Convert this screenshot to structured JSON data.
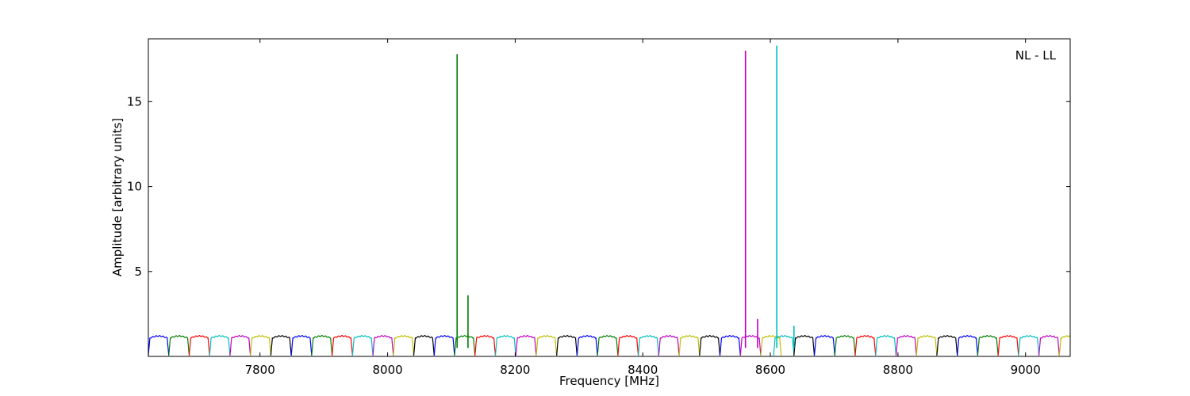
{
  "chart_data": {
    "type": "line",
    "title": "",
    "xlabel": "Frequency [MHz]",
    "ylabel": "Amplitude [arbitrary units]",
    "annotation": "NL - LL",
    "xlim": [
      7625,
      9070
    ],
    "ylim": [
      0,
      18.7
    ],
    "xticks": [
      7800,
      8000,
      8200,
      8400,
      8600,
      8800,
      9000
    ],
    "yticks": [
      5,
      10,
      15
    ],
    "grid": false,
    "legend": "none",
    "subband_width_mhz": 32,
    "subbands": [
      {
        "start": 7625,
        "color": "#0000ff"
      },
      {
        "start": 7657,
        "color": "#008000"
      },
      {
        "start": 7689,
        "color": "#ff0000"
      },
      {
        "start": 7721,
        "color": "#00bfbf"
      },
      {
        "start": 7753,
        "color": "#bf00bf"
      },
      {
        "start": 7785,
        "color": "#bfbf00"
      },
      {
        "start": 7817,
        "color": "#000000"
      },
      {
        "start": 7849,
        "color": "#0000ff"
      },
      {
        "start": 7881,
        "color": "#008000"
      },
      {
        "start": 7913,
        "color": "#ff0000"
      },
      {
        "start": 7945,
        "color": "#00bfbf"
      },
      {
        "start": 7977,
        "color": "#bf00bf"
      },
      {
        "start": 8009,
        "color": "#bfbf00"
      },
      {
        "start": 8041,
        "color": "#000000"
      },
      {
        "start": 8073,
        "color": "#0000ff"
      },
      {
        "start": 8105,
        "color": "#008000"
      },
      {
        "start": 8137,
        "color": "#ff0000"
      },
      {
        "start": 8169,
        "color": "#00bfbf"
      },
      {
        "start": 8201,
        "color": "#bf00bf"
      },
      {
        "start": 8233,
        "color": "#bfbf00"
      },
      {
        "start": 8265,
        "color": "#000000"
      },
      {
        "start": 8297,
        "color": "#0000ff"
      },
      {
        "start": 8329,
        "color": "#008000"
      },
      {
        "start": 8361,
        "color": "#ff0000"
      },
      {
        "start": 8393,
        "color": "#00bfbf"
      },
      {
        "start": 8425,
        "color": "#bf00bf"
      },
      {
        "start": 8457,
        "color": "#bfbf00"
      },
      {
        "start": 8489,
        "color": "#000000"
      },
      {
        "start": 8521,
        "color": "#0000ff"
      },
      {
        "start": 8553,
        "color": "#bf00bf"
      },
      {
        "start": 8585,
        "color": "#bfbf00"
      },
      {
        "start": 8605,
        "color": "#00bfbf"
      },
      {
        "start": 8637,
        "color": "#000000"
      },
      {
        "start": 8669,
        "color": "#0000ff"
      },
      {
        "start": 8701,
        "color": "#008000"
      },
      {
        "start": 8733,
        "color": "#ff0000"
      },
      {
        "start": 8765,
        "color": "#00bfbf"
      },
      {
        "start": 8797,
        "color": "#bf00bf"
      },
      {
        "start": 8829,
        "color": "#bfbf00"
      },
      {
        "start": 8861,
        "color": "#000000"
      },
      {
        "start": 8893,
        "color": "#0000ff"
      },
      {
        "start": 8925,
        "color": "#008000"
      },
      {
        "start": 8957,
        "color": "#ff0000"
      },
      {
        "start": 8989,
        "color": "#00bfbf"
      },
      {
        "start": 9021,
        "color": "#bf00bf"
      },
      {
        "start": 9053,
        "color": "#bfbf00"
      }
    ],
    "spikes": [
      {
        "x": 8109,
        "y": 17.8,
        "color": "#008000"
      },
      {
        "x": 8126,
        "y": 3.6,
        "color": "#008000"
      },
      {
        "x": 8561,
        "y": 18.0,
        "color": "#bf00bf"
      },
      {
        "x": 8580,
        "y": 2.2,
        "color": "#bf00bf"
      },
      {
        "x": 8610,
        "y": 18.3,
        "color": "#00bfbf"
      },
      {
        "x": 8637,
        "y": 1.8,
        "color": "#00bfbf"
      }
    ]
  }
}
